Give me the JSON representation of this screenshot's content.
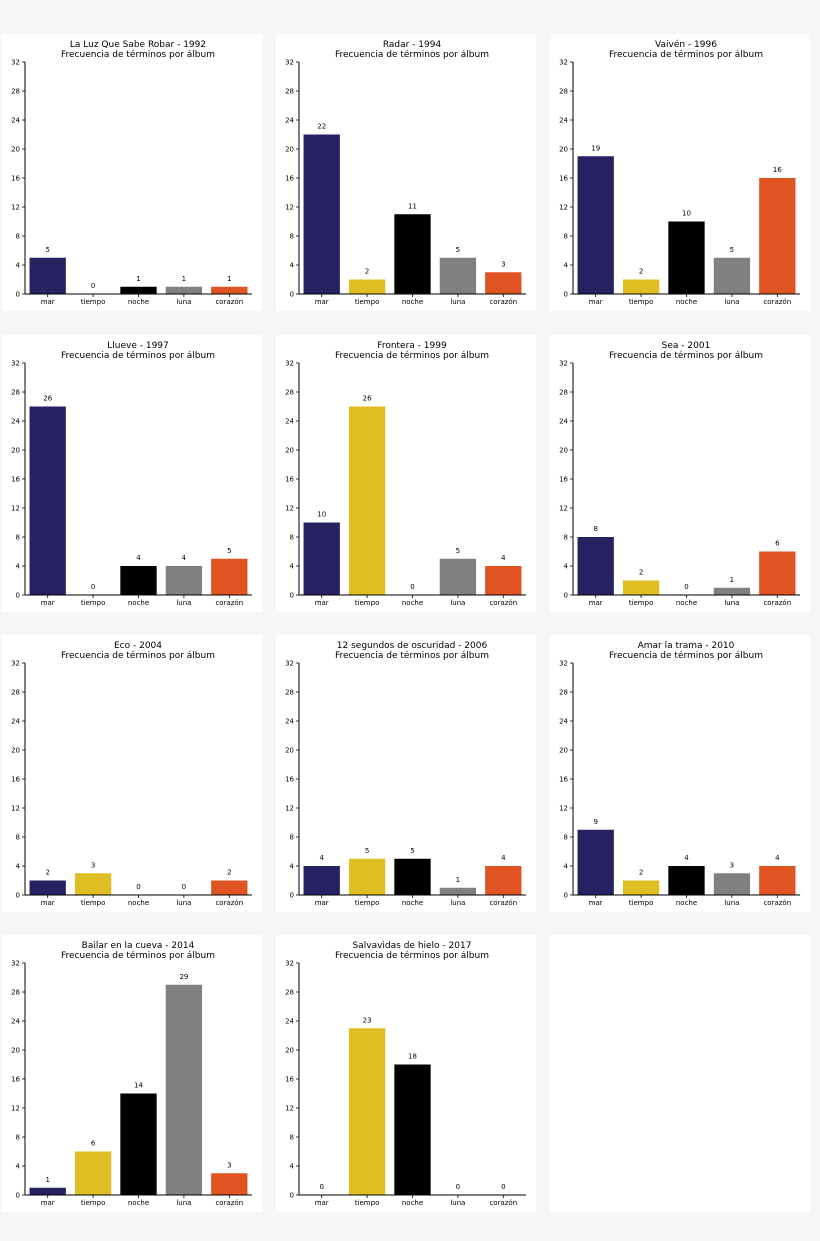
{
  "subtitle": "Frecuencia de términos por álbum",
  "colors": {
    "mar": "#262262",
    "tiempo": "#debe22",
    "noche": "#000000",
    "luna": "#808080",
    "corazon": "#e05424",
    "panel_background": "#ffffff",
    "figure_background": "#f6f6f6"
  },
  "chart_data": [
    {
      "type": "bar",
      "title": "La Luz Que Sabe Robar - 1992",
      "subtitle": "Frecuencia de términos por álbum",
      "categories": [
        "mar",
        "tiempo",
        "noche",
        "luna",
        "corazón"
      ],
      "values": [
        5,
        0,
        1,
        1,
        1
      ],
      "ylim": [
        0,
        32
      ],
      "yticks": [
        0,
        4,
        8,
        12,
        16,
        20,
        24,
        28,
        32
      ],
      "grid": false
    },
    {
      "type": "bar",
      "title": "Radar - 1994",
      "subtitle": "Frecuencia de términos por álbum",
      "categories": [
        "mar",
        "tiempo",
        "noche",
        "luna",
        "corazón"
      ],
      "values": [
        22,
        2,
        11,
        5,
        3
      ],
      "ylim": [
        0,
        32
      ],
      "yticks": [
        0,
        4,
        8,
        12,
        16,
        20,
        24,
        28,
        32
      ],
      "grid": false
    },
    {
      "type": "bar",
      "title": "Vaivén - 1996",
      "subtitle": "Frecuencia de términos por álbum",
      "categories": [
        "mar",
        "tiempo",
        "noche",
        "luna",
        "corazón"
      ],
      "values": [
        19,
        2,
        10,
        5,
        16
      ],
      "ylim": [
        0,
        32
      ],
      "yticks": [
        0,
        4,
        8,
        12,
        16,
        20,
        24,
        28,
        32
      ],
      "grid": false
    },
    {
      "type": "bar",
      "title": "Llueve - 1997",
      "subtitle": "Frecuencia de términos por álbum",
      "categories": [
        "mar",
        "tiempo",
        "noche",
        "luna",
        "corazón"
      ],
      "values": [
        26,
        0,
        4,
        4,
        5
      ],
      "ylim": [
        0,
        32
      ],
      "yticks": [
        0,
        4,
        8,
        12,
        16,
        20,
        24,
        28,
        32
      ],
      "grid": false
    },
    {
      "type": "bar",
      "title": "Frontera - 1999",
      "subtitle": "Frecuencia de términos por álbum",
      "categories": [
        "mar",
        "tiempo",
        "noche",
        "luna",
        "corazón"
      ],
      "values": [
        10,
        26,
        0,
        5,
        4
      ],
      "ylim": [
        0,
        32
      ],
      "yticks": [
        0,
        4,
        8,
        12,
        16,
        20,
        24,
        28,
        32
      ],
      "grid": false
    },
    {
      "type": "bar",
      "title": "Sea - 2001",
      "subtitle": "Frecuencia de términos por álbum",
      "categories": [
        "mar",
        "tiempo",
        "noche",
        "luna",
        "corazón"
      ],
      "values": [
        8,
        2,
        0,
        1,
        6
      ],
      "ylim": [
        0,
        32
      ],
      "yticks": [
        0,
        4,
        8,
        12,
        16,
        20,
        24,
        28,
        32
      ],
      "grid": false
    },
    {
      "type": "bar",
      "title": "Eco - 2004",
      "subtitle": "Frecuencia de términos por álbum",
      "categories": [
        "mar",
        "tiempo",
        "noche",
        "luna",
        "corazón"
      ],
      "values": [
        2,
        3,
        0,
        0,
        2
      ],
      "ylim": [
        0,
        32
      ],
      "yticks": [
        0,
        4,
        8,
        12,
        16,
        20,
        24,
        28,
        32
      ],
      "grid": false
    },
    {
      "type": "bar",
      "title": "12 segundos de oscuridad - 2006",
      "subtitle": "Frecuencia de términos por álbum",
      "categories": [
        "mar",
        "tiempo",
        "noche",
        "luna",
        "corazón"
      ],
      "values": [
        4,
        5,
        5,
        1,
        4
      ],
      "ylim": [
        0,
        32
      ],
      "yticks": [
        0,
        4,
        8,
        12,
        16,
        20,
        24,
        28,
        32
      ],
      "grid": false
    },
    {
      "type": "bar",
      "title": "Amar la trama - 2010",
      "subtitle": "Frecuencia de términos por álbum",
      "categories": [
        "mar",
        "tiempo",
        "noche",
        "luna",
        "corazón"
      ],
      "values": [
        9,
        2,
        4,
        3,
        4
      ],
      "ylim": [
        0,
        32
      ],
      "yticks": [
        0,
        4,
        8,
        12,
        16,
        20,
        24,
        28,
        32
      ],
      "grid": false
    },
    {
      "type": "bar",
      "title": "Bailar en la cueva - 2014",
      "subtitle": "Frecuencia de términos por álbum",
      "categories": [
        "mar",
        "tiempo",
        "noche",
        "luna",
        "corazón"
      ],
      "values": [
        1,
        6,
        14,
        29,
        3
      ],
      "ylim": [
        0,
        32
      ],
      "yticks": [
        0,
        4,
        8,
        12,
        16,
        20,
        24,
        28,
        32
      ],
      "grid": false
    },
    {
      "type": "bar",
      "title": "Salvavidas de hielo - 2017",
      "subtitle": "Frecuencia de términos por álbum",
      "categories": [
        "mar",
        "tiempo",
        "noche",
        "luna",
        "corazón"
      ],
      "values": [
        0,
        23,
        18,
        0,
        0
      ],
      "ylim": [
        0,
        32
      ],
      "yticks": [
        0,
        4,
        8,
        12,
        16,
        20,
        24,
        28,
        32
      ],
      "grid": false
    }
  ]
}
